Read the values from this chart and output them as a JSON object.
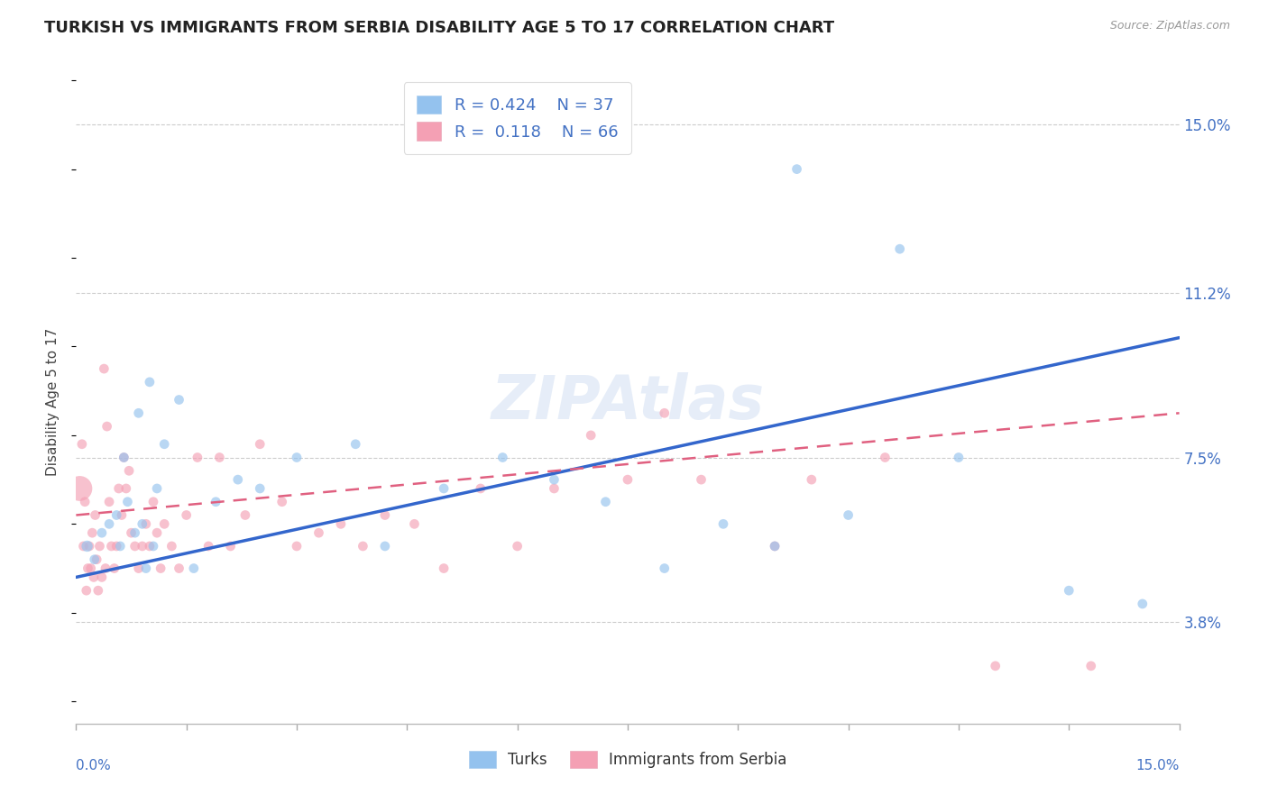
{
  "title": "TURKISH VS IMMIGRANTS FROM SERBIA DISABILITY AGE 5 TO 17 CORRELATION CHART",
  "source": "Source: ZipAtlas.com",
  "ylabel": "Disability Age 5 to 17",
  "xmin": 0.0,
  "xmax": 15.0,
  "ymin": 1.5,
  "ymax": 16.0,
  "yticks": [
    3.8,
    7.5,
    11.2,
    15.0
  ],
  "ytick_labels": [
    "3.8%",
    "7.5%",
    "11.2%",
    "15.0%"
  ],
  "legend_blue_r": "R = 0.424",
  "legend_blue_n": "N = 37",
  "legend_pink_r": "R =  0.118",
  "legend_pink_n": "N = 66",
  "label_blue": "Turks",
  "label_pink": "Immigrants from Serbia",
  "color_blue": "#94C2EE",
  "color_pink": "#F4A0B4",
  "color_blue_line": "#3366CC",
  "color_pink_line": "#E06080",
  "title_color": "#222222",
  "axis_label_color": "#444444",
  "tick_label_color": "#4472C4",
  "background_color": "#FFFFFF",
  "grid_color": "#CCCCCC",
  "turks_x": [
    0.15,
    0.25,
    0.35,
    0.45,
    0.55,
    0.6,
    0.65,
    0.7,
    0.8,
    0.85,
    0.9,
    0.95,
    1.0,
    1.05,
    1.1,
    1.2,
    1.4,
    1.6,
    1.9,
    2.2,
    2.5,
    3.0,
    3.8,
    4.2,
    5.0,
    5.8,
    6.5,
    7.2,
    8.0,
    8.8,
    9.5,
    9.8,
    10.5,
    11.2,
    12.0,
    13.5,
    14.5
  ],
  "turks_y": [
    5.5,
    5.2,
    5.8,
    6.0,
    6.2,
    5.5,
    7.5,
    6.5,
    5.8,
    8.5,
    6.0,
    5.0,
    9.2,
    5.5,
    6.8,
    7.8,
    8.8,
    5.0,
    6.5,
    7.0,
    6.8,
    7.5,
    7.8,
    5.5,
    6.8,
    7.5,
    7.0,
    6.5,
    5.0,
    6.0,
    5.5,
    14.0,
    6.2,
    12.2,
    7.5,
    4.5,
    4.2
  ],
  "turks_sizes": [
    80,
    60,
    60,
    60,
    60,
    60,
    60,
    60,
    60,
    60,
    60,
    60,
    60,
    60,
    60,
    60,
    60,
    60,
    60,
    60,
    60,
    60,
    60,
    60,
    60,
    60,
    60,
    60,
    60,
    60,
    60,
    60,
    60,
    60,
    60,
    60,
    60
  ],
  "serbia_x": [
    0.05,
    0.08,
    0.1,
    0.12,
    0.14,
    0.16,
    0.18,
    0.2,
    0.22,
    0.24,
    0.26,
    0.28,
    0.3,
    0.32,
    0.35,
    0.38,
    0.4,
    0.42,
    0.45,
    0.48,
    0.52,
    0.55,
    0.58,
    0.62,
    0.65,
    0.68,
    0.72,
    0.75,
    0.8,
    0.85,
    0.9,
    0.95,
    1.0,
    1.05,
    1.1,
    1.15,
    1.2,
    1.3,
    1.4,
    1.5,
    1.65,
    1.8,
    1.95,
    2.1,
    2.3,
    2.5,
    2.8,
    3.0,
    3.3,
    3.6,
    3.9,
    4.2,
    4.6,
    5.0,
    5.5,
    6.0,
    6.5,
    7.0,
    7.5,
    8.0,
    8.5,
    9.5,
    10.0,
    11.0,
    12.5,
    13.8
  ],
  "serbia_y": [
    6.8,
    7.8,
    5.5,
    6.5,
    4.5,
    5.0,
    5.5,
    5.0,
    5.8,
    4.8,
    6.2,
    5.2,
    4.5,
    5.5,
    4.8,
    9.5,
    5.0,
    8.2,
    6.5,
    5.5,
    5.0,
    5.5,
    6.8,
    6.2,
    7.5,
    6.8,
    7.2,
    5.8,
    5.5,
    5.0,
    5.5,
    6.0,
    5.5,
    6.5,
    5.8,
    5.0,
    6.0,
    5.5,
    5.0,
    6.2,
    7.5,
    5.5,
    7.5,
    5.5,
    6.2,
    7.8,
    6.5,
    5.5,
    5.8,
    6.0,
    5.5,
    6.2,
    6.0,
    5.0,
    6.8,
    5.5,
    6.8,
    8.0,
    7.0,
    8.5,
    7.0,
    5.5,
    7.0,
    7.5,
    2.8,
    2.8
  ],
  "serbia_sizes": [
    400,
    60,
    60,
    60,
    60,
    60,
    60,
    60,
    60,
    60,
    60,
    60,
    60,
    60,
    60,
    60,
    60,
    60,
    60,
    60,
    60,
    60,
    60,
    60,
    60,
    60,
    60,
    60,
    60,
    60,
    60,
    60,
    60,
    60,
    60,
    60,
    60,
    60,
    60,
    60,
    60,
    60,
    60,
    60,
    60,
    60,
    60,
    60,
    60,
    60,
    60,
    60,
    60,
    60,
    60,
    60,
    60,
    60,
    60,
    60,
    60,
    60,
    60,
    60,
    60,
    60
  ],
  "blue_line_x0": 0.0,
  "blue_line_y0": 4.8,
  "blue_line_x1": 15.0,
  "blue_line_y1": 10.2,
  "pink_line_x0": 0.0,
  "pink_line_y0": 6.2,
  "pink_line_x1": 15.0,
  "pink_line_y1": 8.5
}
